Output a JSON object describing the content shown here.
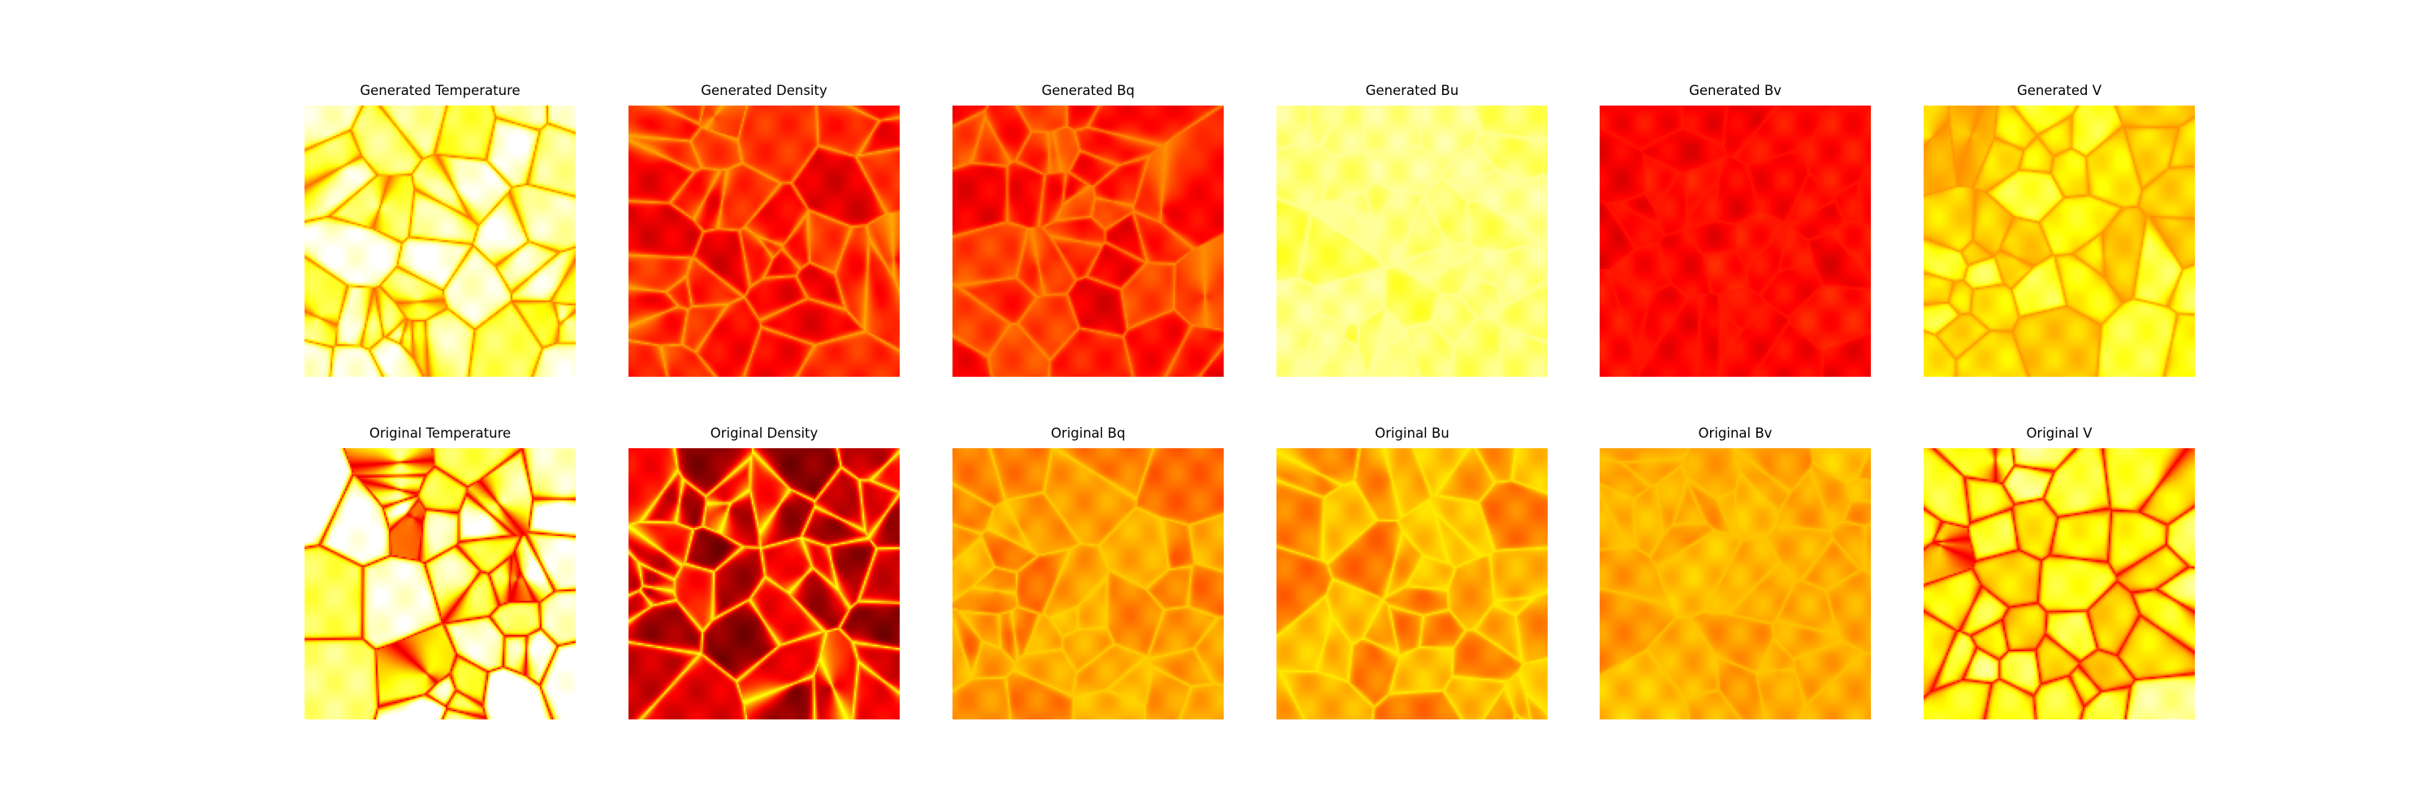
{
  "figure": {
    "panels": [
      {
        "title": "Generated Temperature",
        "colormap": "hot",
        "base": 0.9,
        "edge": 0.52,
        "spread": 0.2,
        "seed": 1
      },
      {
        "title": "Generated Density",
        "colormap": "hot",
        "base": 0.38,
        "edge": 0.62,
        "spread": 0.14,
        "seed": 2
      },
      {
        "title": "Generated Bq",
        "colormap": "hot",
        "base": 0.4,
        "edge": 0.58,
        "spread": 0.16,
        "seed": 3
      },
      {
        "title": "Generated Bu",
        "colormap": "hot",
        "base": 0.85,
        "edge": 0.9,
        "spread": 0.08,
        "seed": 4
      },
      {
        "title": "Generated Bv",
        "colormap": "hot",
        "base": 0.37,
        "edge": 0.4,
        "spread": 0.06,
        "seed": 5
      },
      {
        "title": "Generated V",
        "colormap": "hot",
        "base": 0.74,
        "edge": 0.58,
        "spread": 0.16,
        "seed": 6
      },
      {
        "title": "Original Temperature",
        "colormap": "hot",
        "base": 0.94,
        "edge": 0.32,
        "spread": 0.26,
        "seed": 7
      },
      {
        "title": "Original Density",
        "colormap": "hot",
        "base": 0.28,
        "edge": 0.78,
        "spread": 0.22,
        "seed": 8
      },
      {
        "title": "Original Bq",
        "colormap": "hot",
        "base": 0.58,
        "edge": 0.68,
        "spread": 0.12,
        "seed": 9
      },
      {
        "title": "Original Bu",
        "colormap": "hot",
        "base": 0.6,
        "edge": 0.72,
        "spread": 0.14,
        "seed": 10
      },
      {
        "title": "Original Bv",
        "colormap": "hot",
        "base": 0.62,
        "edge": 0.66,
        "spread": 0.08,
        "seed": 11
      },
      {
        "title": "Original V",
        "colormap": "hot",
        "base": 0.78,
        "edge": 0.34,
        "spread": 0.24,
        "seed": 12
      }
    ]
  }
}
